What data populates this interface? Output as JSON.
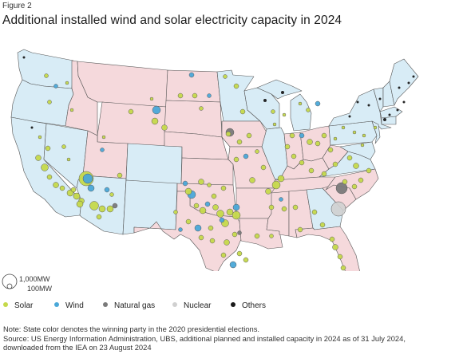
{
  "figure_label": "Figure 2",
  "title": "Additional installed wind and solar electricity capacity in 2024",
  "size_legend": {
    "large_label": "1,000MW",
    "small_label": "100MW"
  },
  "legend": [
    {
      "label": "Solar",
      "color": "#c5d94a"
    },
    {
      "label": "Wind",
      "color": "#4aa8d8"
    },
    {
      "label": "Natural gas",
      "color": "#7a7a7a"
    },
    {
      "label": "Nuclear",
      "color": "#d0d0d0"
    },
    {
      "label": "Others",
      "color": "#1a1a1a"
    }
  ],
  "state_colors": {
    "democrat": "#d8ecf6",
    "republican": "#f5d9dc",
    "border": "#555555"
  },
  "notes": {
    "line1": "Note: State color denotes the winning party in the 2020 presidential elections.",
    "line2": "Source: US Energy Information Administration, UBS, additional planned and installed capacity in 2024 as of 31 July 2024,",
    "line3": "downloaded from the IEA on 23 August 2024"
  }
}
